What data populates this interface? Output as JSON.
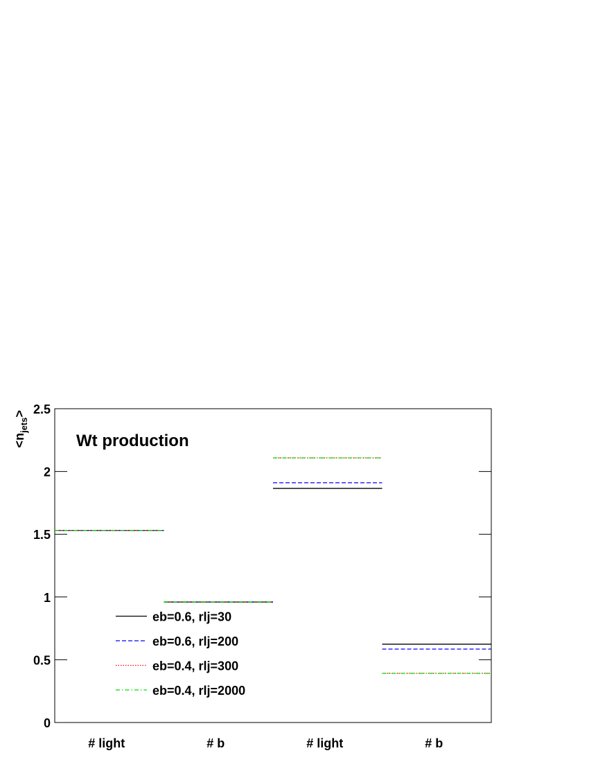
{
  "chart_data": {
    "type": "step",
    "annotation": "Wt production",
    "ylabel": [
      "<n",
      "jets",
      ">"
    ],
    "categories": [
      "# light",
      "# b",
      "# light",
      "# b"
    ],
    "ylim": [
      0,
      2.5
    ],
    "yticks": [
      0,
      0.5,
      1,
      1.5,
      2,
      2.5
    ],
    "legend_position": "lower left",
    "series": [
      {
        "name": "eb=0.6, rlj=30",
        "color": "#000000",
        "line_style": "solid",
        "values": [
          1.53,
          0.96,
          1.865,
          0.624
        ]
      },
      {
        "name": "eb=0.6, rlj=200",
        "color": "#0000ff",
        "line_style": "dashed",
        "values": [
          1.53,
          0.96,
          1.91,
          0.585
        ]
      },
      {
        "name": "eb=0.4, rlj=300",
        "color": "#ff0000",
        "line_style": "dotted",
        "values": [
          1.53,
          0.96,
          2.108,
          0.392
        ]
      },
      {
        "name": "eb=0.4, rlj=2000",
        "color": "#00dd00",
        "line_style": "dashdot",
        "values": [
          1.53,
          0.96,
          2.108,
          0.392
        ]
      }
    ]
  }
}
